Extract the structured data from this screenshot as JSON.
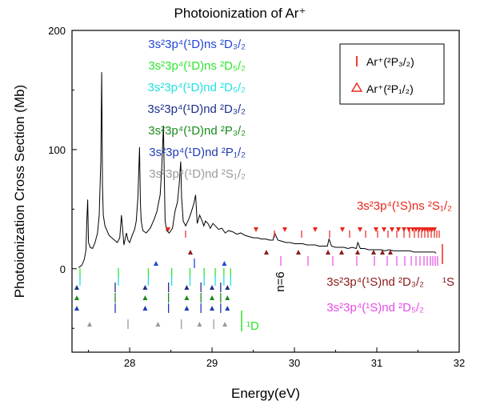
{
  "chart_data": {
    "type": "line",
    "title": "Photoionization of Ar⁺",
    "xlabel": "Energy(eV)",
    "ylabel": "Photoionization Cross Section (Mb)",
    "xlim": [
      27.3,
      32.0
    ],
    "ylim": [
      -70,
      200
    ],
    "xticks": [
      28,
      29,
      30,
      31,
      32
    ],
    "yticks": [
      0,
      100,
      200
    ],
    "grid": false,
    "legend": {
      "placement": "top-right",
      "entries": [
        {
          "marker": "|",
          "color": "#e8261a",
          "label": "Ar⁺(²P₃/₂)"
        },
        {
          "marker": "Δ",
          "color": "#e8261a",
          "label": "Ar⁺(²P₁/₂)"
        }
      ]
    },
    "series": [
      {
        "color": "#000000",
        "x": [
          27.38,
          27.42,
          27.45,
          27.47,
          27.48,
          27.49,
          27.5,
          27.52,
          27.55,
          27.58,
          27.61,
          27.63,
          27.65,
          27.66,
          27.67,
          27.68,
          27.7,
          27.75,
          27.8,
          27.85,
          27.88,
          27.9,
          27.93,
          27.96,
          27.98,
          28.0,
          28.03,
          28.06,
          28.08,
          28.1,
          28.12,
          28.13,
          28.14,
          28.16,
          28.2,
          28.25,
          28.3,
          28.33,
          28.35,
          28.37,
          28.39,
          28.41,
          28.42,
          28.43,
          28.45,
          28.48,
          28.52,
          28.55,
          28.58,
          28.6,
          28.62,
          28.63,
          28.65,
          28.68,
          28.72,
          28.75,
          28.78,
          28.8,
          28.82,
          28.85,
          28.88,
          28.9,
          28.92,
          28.95,
          28.98,
          29.01,
          29.04,
          29.08,
          29.12,
          29.16,
          29.2,
          29.25,
          29.3,
          29.35,
          29.4,
          29.45,
          29.5,
          29.55,
          29.6,
          29.65,
          29.7,
          29.74,
          29.76,
          29.8,
          29.85,
          29.9,
          29.95,
          30.0,
          30.05,
          30.1,
          30.15,
          30.2,
          30.25,
          30.3,
          30.35,
          30.4,
          30.42,
          30.45,
          30.5,
          30.55,
          30.6,
          30.65,
          30.7,
          30.75,
          30.77,
          30.8,
          30.85,
          30.9,
          30.95,
          31.0,
          31.05,
          31.1,
          31.15,
          31.2,
          31.25,
          31.3,
          31.35,
          31.4,
          31.45,
          31.5,
          31.55,
          31.6,
          31.65,
          31.7,
          31.72
        ],
        "y": [
          1,
          3,
          8,
          16,
          40,
          58,
          22,
          18,
          17,
          22,
          30,
          45,
          90,
          165,
          70,
          45,
          36,
          28,
          25,
          22,
          26,
          45,
          20,
          30,
          24,
          22,
          28,
          33,
          40,
          60,
          102,
          55,
          40,
          32,
          30,
          34,
          42,
          48,
          55,
          62,
          85,
          120,
          80,
          40,
          32,
          30,
          34,
          48,
          56,
          70,
          90,
          60,
          40,
          36,
          42,
          48,
          55,
          62,
          38,
          45,
          40,
          36,
          40,
          38,
          34,
          38,
          36,
          33,
          34,
          30,
          32,
          31,
          29,
          30,
          28,
          27,
          26,
          26,
          25,
          25,
          24,
          24,
          30,
          24,
          23,
          22,
          22,
          21,
          21,
          21,
          20,
          20,
          20,
          19,
          19,
          19,
          25,
          19,
          18,
          18,
          18,
          17,
          18,
          17,
          22,
          17,
          17,
          16,
          16,
          16,
          16,
          15,
          16,
          15,
          15,
          15,
          15,
          15,
          14,
          14,
          14,
          14,
          14,
          14,
          13
        ]
      }
    ],
    "annotations": [
      {
        "label": "3s²3p⁴(¹D)ns ²D₃/₂",
        "color": "#2146d6"
      },
      {
        "label": "3s²3p⁴(¹D)ns ²D₅/₂",
        "color": "#2ee62e"
      },
      {
        "label": "3s²3p⁴(¹D)nd ²D₅/₂",
        "color": "#22e1e1"
      },
      {
        "label": "3s²3p⁴(¹D)nd ²D₃/₂",
        "color": "#1e2f8c"
      },
      {
        "label": "3s²3p⁴(¹D)nd ²P₃/₂",
        "color": "#1a8a1a"
      },
      {
        "label": "3s²3p⁴(¹D)nd ²P₁/₂",
        "color": "#1e3bb4"
      },
      {
        "label": "3s²3p⁴(¹D)nd ²S₁/₂",
        "color": "#9a9a9a"
      },
      {
        "label": "3s²3p⁴(¹S)ns ²S₁/₂",
        "color": "#e8261a"
      },
      {
        "label": "3s²3p⁴(¹S)nd ²D₃/₂",
        "color": "#8b1a1a"
      },
      {
        "label": "3s²3p⁴(¹S)nd ²D₅/₂",
        "color": "#e64ce6"
      },
      {
        "label": "n=6",
        "color": "#000000"
      },
      {
        "label": "¹D",
        "color": "#2ee62e"
      },
      {
        "label": "¹S",
        "color": "#8b1a1a"
      }
    ]
  }
}
